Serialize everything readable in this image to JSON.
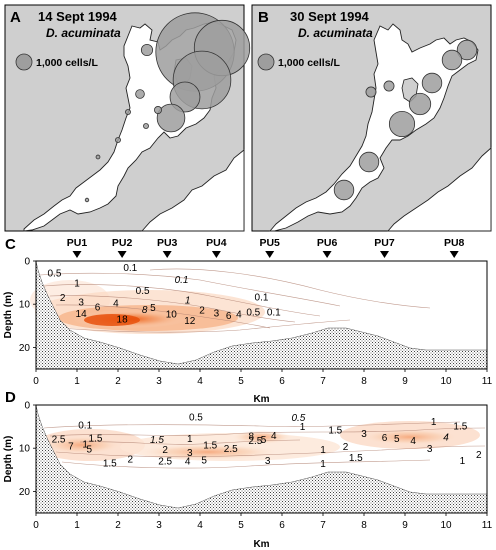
{
  "panels": {
    "A": {
      "letter": "A",
      "date": "14 Sept 1994",
      "species": "D. acuminata",
      "legend": "1,000 cells/L",
      "circles": [
        {
          "x": 195,
          "y": 52,
          "cells": 24000
        },
        {
          "x": 222,
          "y": 48,
          "cells": 12000
        },
        {
          "x": 202,
          "y": 80,
          "cells": 13000
        },
        {
          "x": 185,
          "y": 97,
          "cells": 3500
        },
        {
          "x": 171,
          "y": 118,
          "cells": 3000
        },
        {
          "x": 147,
          "y": 50,
          "cells": 500
        },
        {
          "x": 140,
          "y": 94,
          "cells": 300
        },
        {
          "x": 158,
          "y": 110,
          "cells": 200
        },
        {
          "x": 128,
          "y": 112,
          "cells": 100
        },
        {
          "x": 146,
          "y": 126,
          "cells": 100
        },
        {
          "x": 118,
          "y": 140,
          "cells": 100
        },
        {
          "x": 98,
          "y": 157,
          "cells": 60
        },
        {
          "x": 87,
          "y": 200,
          "cells": 50
        }
      ]
    },
    "B": {
      "letter": "B",
      "date": "30 Sept 1994",
      "species": "D. acuminata",
      "legend": "1,000  cells/L",
      "circles": [
        {
          "x": 467,
          "y": 50,
          "cells": 1500
        },
        {
          "x": 452,
          "y": 60,
          "cells": 1500
        },
        {
          "x": 432,
          "y": 83,
          "cells": 1500
        },
        {
          "x": 420,
          "y": 104,
          "cells": 1800
        },
        {
          "x": 402,
          "y": 124,
          "cells": 2500
        },
        {
          "x": 389,
          "y": 86,
          "cells": 400
        },
        {
          "x": 371,
          "y": 92,
          "cells": 400
        },
        {
          "x": 369,
          "y": 162,
          "cells": 1500
        },
        {
          "x": 344,
          "y": 190,
          "cells": 1500
        }
      ]
    }
  },
  "sections": {
    "stations": [
      {
        "name": "PU1",
        "km": 1.0
      },
      {
        "name": "PU2",
        "km": 2.1
      },
      {
        "name": "PU3",
        "km": 3.2
      },
      {
        "name": "PU4",
        "km": 4.4
      },
      {
        "name": "PU5",
        "km": 5.7
      },
      {
        "name": "PU6",
        "km": 7.1
      },
      {
        "name": "PU7",
        "km": 8.5
      },
      {
        "name": "PU8",
        "km": 10.2
      }
    ],
    "C": {
      "letter": "C",
      "ylabel": "Depth (m)",
      "xlabel": "Km",
      "labels": [
        {
          "t": "0.1",
          "km": 2.3,
          "d": 1.5,
          "italic": false
        },
        {
          "t": "0.5",
          "km": 0.45,
          "d": 2.8,
          "italic": false
        },
        {
          "t": "0.1",
          "km": 3.55,
          "d": 4.3,
          "italic": true
        },
        {
          "t": "1",
          "km": 1.0,
          "d": 5.1,
          "italic": false
        },
        {
          "t": "0.5",
          "km": 2.6,
          "d": 6.8,
          "italic": false
        },
        {
          "t": "1",
          "km": 3.7,
          "d": 9.0,
          "italic": true
        },
        {
          "t": "0.1",
          "km": 5.5,
          "d": 8.3,
          "italic": false
        },
        {
          "t": "2",
          "km": 0.65,
          "d": 8.5,
          "italic": false
        },
        {
          "t": "3",
          "km": 1.1,
          "d": 9.5,
          "italic": false
        },
        {
          "t": "6",
          "km": 1.5,
          "d": 10.6,
          "italic": false
        },
        {
          "t": "4",
          "km": 1.95,
          "d": 9.7,
          "italic": false
        },
        {
          "t": "8",
          "km": 2.65,
          "d": 11.2,
          "italic": true
        },
        {
          "t": "5",
          "km": 2.85,
          "d": 10.8,
          "italic": false
        },
        {
          "t": "10",
          "km": 3.3,
          "d": 12.3,
          "italic": false
        },
        {
          "t": "2",
          "km": 4.05,
          "d": 11.4,
          "italic": false
        },
        {
          "t": "3",
          "km": 4.4,
          "d": 12.0,
          "italic": false
        },
        {
          "t": "6",
          "km": 4.7,
          "d": 12.6,
          "italic": false
        },
        {
          "t": "4",
          "km": 4.95,
          "d": 12.3,
          "italic": false
        },
        {
          "t": "0.5",
          "km": 5.3,
          "d": 11.8,
          "italic": false
        },
        {
          "t": "0.1",
          "km": 5.8,
          "d": 11.8,
          "italic": false
        },
        {
          "t": "14",
          "km": 1.1,
          "d": 12.2,
          "italic": false
        },
        {
          "t": "18",
          "km": 2.1,
          "d": 13.4,
          "italic": false
        },
        {
          "t": "12",
          "km": 3.75,
          "d": 13.8,
          "italic": false
        }
      ]
    },
    "D": {
      "letter": "D",
      "ylabel": "Depth (m)",
      "xlabel": "Km",
      "labels": [
        {
          "t": "0.5",
          "km": 3.9,
          "d": 2.8,
          "italic": false
        },
        {
          "t": "0.5",
          "km": 6.4,
          "d": 2.9,
          "italic": true
        },
        {
          "t": "0.1",
          "km": 1.2,
          "d": 4.6,
          "italic": false
        },
        {
          "t": "1",
          "km": 6.5,
          "d": 5.0,
          "italic": false
        },
        {
          "t": "1",
          "km": 9.7,
          "d": 3.8,
          "italic": false
        },
        {
          "t": "1.5",
          "km": 10.35,
          "d": 4.9,
          "italic": false
        },
        {
          "t": "1.5",
          "km": 7.3,
          "d": 5.8,
          "italic": false
        },
        {
          "t": "3",
          "km": 8.0,
          "d": 6.6,
          "italic": false
        },
        {
          "t": "6",
          "km": 8.5,
          "d": 7.5,
          "italic": false
        },
        {
          "t": "5",
          "km": 8.8,
          "d": 7.8,
          "italic": false
        },
        {
          "t": "4",
          "km": 9.2,
          "d": 8.2,
          "italic": false
        },
        {
          "t": "4",
          "km": 10.0,
          "d": 7.4,
          "italic": true
        },
        {
          "t": "3",
          "km": 9.6,
          "d": 10.1,
          "italic": false
        },
        {
          "t": "2",
          "km": 10.8,
          "d": 11.5,
          "italic": false
        },
        {
          "t": "1",
          "km": 10.4,
          "d": 12.8,
          "italic": false
        },
        {
          "t": "1.5",
          "km": 1.45,
          "d": 7.6,
          "italic": false
        },
        {
          "t": "2.5",
          "km": 0.55,
          "d": 7.9,
          "italic": false
        },
        {
          "t": "1",
          "km": 1.2,
          "d": 9.0,
          "italic": false
        },
        {
          "t": "7",
          "km": 0.85,
          "d": 9.5,
          "italic": false
        },
        {
          "t": "5",
          "km": 1.3,
          "d": 10.2,
          "italic": false
        },
        {
          "t": "1.5",
          "km": 2.95,
          "d": 8.0,
          "italic": true
        },
        {
          "t": "1",
          "km": 3.75,
          "d": 7.7,
          "italic": false
        },
        {
          "t": "2",
          "km": 3.15,
          "d": 10.3,
          "italic": false
        },
        {
          "t": "3",
          "km": 3.75,
          "d": 11.0,
          "italic": false
        },
        {
          "t": "2.5",
          "km": 4.75,
          "d": 10.1,
          "italic": false
        },
        {
          "t": "1.5",
          "km": 4.25,
          "d": 9.3,
          "italic": false
        },
        {
          "t": "2.5",
          "km": 5.35,
          "d": 8.2,
          "italic": false
        },
        {
          "t": "5",
          "km": 5.55,
          "d": 8.0,
          "italic": false
        },
        {
          "t": "8",
          "km": 5.25,
          "d": 7.2,
          "italic": false
        },
        {
          "t": "4",
          "km": 5.8,
          "d": 7.1,
          "italic": false
        },
        {
          "t": "2",
          "km": 7.55,
          "d": 9.6,
          "italic": false
        },
        {
          "t": "1",
          "km": 7.0,
          "d": 10.3,
          "italic": false
        },
        {
          "t": "1.5",
          "km": 1.8,
          "d": 13.4,
          "italic": false
        },
        {
          "t": "2",
          "km": 2.3,
          "d": 12.5,
          "italic": false
        },
        {
          "t": "2.5",
          "km": 3.15,
          "d": 13.0,
          "italic": false
        },
        {
          "t": "4",
          "km": 3.7,
          "d": 13.0,
          "italic": false
        },
        {
          "t": "5",
          "km": 4.1,
          "d": 12.7,
          "italic": false
        },
        {
          "t": "3",
          "km": 5.65,
          "d": 12.8,
          "italic": false
        },
        {
          "t": "1",
          "km": 7.0,
          "d": 13.5,
          "italic": false
        },
        {
          "t": "1.5",
          "km": 7.8,
          "d": 12.2,
          "italic": false
        }
      ]
    }
  },
  "chart_data": [
    {
      "type": "scatter",
      "title": "14 Sept 1994",
      "subtitle": "D. acuminata",
      "legend": "1,000 cells/L",
      "description_of_marks": "proportional circles = D. acuminata cells/L at stations"
    },
    {
      "type": "scatter",
      "title": "30 Sept 1994",
      "subtitle": "D. acuminata",
      "legend": "1,000 cells/L"
    },
    {
      "type": "heatmap",
      "panel": "C",
      "xlabel": "Km",
      "ylabel": "Depth (m)",
      "xlim": [
        0,
        11
      ],
      "ylim": [
        25,
        0
      ],
      "xticks": [
        0,
        1,
        2,
        3,
        4,
        5,
        6,
        7,
        8,
        9,
        10,
        11
      ],
      "yticks": [
        0,
        10,
        20
      ],
      "contour_levels": [
        0.1,
        0.5,
        1,
        2,
        3,
        4,
        5,
        6,
        8,
        10,
        12,
        14,
        18
      ]
    },
    {
      "type": "heatmap",
      "panel": "D",
      "xlabel": "Km",
      "ylabel": "Depth (m)",
      "xlim": [
        0,
        11
      ],
      "ylim": [
        25,
        0
      ],
      "xticks": [
        0,
        1,
        2,
        3,
        4,
        5,
        6,
        7,
        8,
        9,
        10,
        11
      ],
      "yticks": [
        0,
        10,
        20
      ],
      "contour_levels": [
        0.1,
        0.5,
        1,
        1.5,
        2,
        2.5,
        3,
        4,
        5,
        6,
        7,
        8
      ]
    }
  ]
}
